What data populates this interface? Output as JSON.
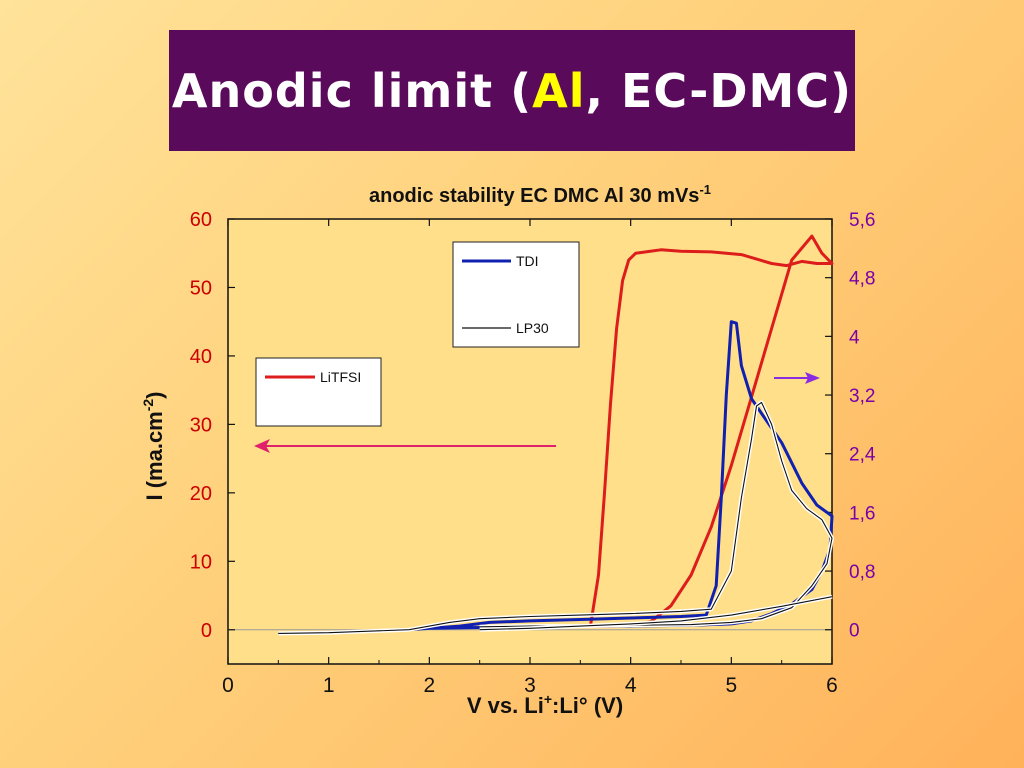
{
  "slide": {
    "title_prefix": "Anodic limit (",
    "title_highlight": "Al",
    "title_suffix": ", EC-DMC)"
  },
  "chart_data": {
    "type": "line",
    "title": "anodic stability EC DMC Al 30 mVs",
    "title_superscript": "-1",
    "xlabel_main": "V vs. Li",
    "xlabel_sup": "+",
    "xlabel_tail": ":Li° (V)",
    "ylabel_main": "I (ma.cm",
    "ylabel_sup": "-2",
    "ylabel_tail": ")",
    "xlim": [
      0,
      6
    ],
    "ylim_left": [
      -5,
      60
    ],
    "ylim_right": [
      -0.467,
      5.6
    ],
    "x_ticks": [
      "0",
      "1",
      "2",
      "3",
      "4",
      "5",
      "6"
    ],
    "y_ticks_left": [
      "0",
      "10",
      "20",
      "30",
      "40",
      "50",
      "60"
    ],
    "y_ticks_right": [
      "0",
      "0,8",
      "1,6",
      "2,4",
      "3,2",
      "4",
      "4,8",
      "5,6"
    ],
    "colors": {
      "left_axis": "#cc0000",
      "right_axis": "#7a00a8",
      "litfsi": "#dd1c1c",
      "tdi": "#1020b0",
      "lp30": "#111111",
      "arrow_left": "#e0206a",
      "arrow_right": "#8a2be2"
    },
    "legend_litfsi": "LiTFSI",
    "legend_tdi": "TDI",
    "legend_lp30": "LP30",
    "series": [
      {
        "name": "LiTFSI",
        "axis": "left",
        "x": [
          3.6,
          3.68,
          3.74,
          3.8,
          3.86,
          3.92,
          3.98,
          4.05,
          4.15,
          4.3,
          4.5,
          4.8,
          5.1,
          5.4,
          5.55,
          5.7,
          5.85,
          6.0,
          5.9,
          5.8,
          5.6,
          5.4,
          5.2,
          5.0,
          4.8,
          4.6,
          4.4,
          4.2,
          4.0,
          3.8,
          3.6
        ],
        "y": [
          0.5,
          8,
          20,
          33,
          44,
          51,
          54,
          55,
          55.2,
          55.5,
          55.3,
          55.2,
          54.8,
          53.5,
          53.2,
          53.8,
          53.5,
          53.5,
          55,
          57.5,
          54,
          44,
          34,
          24,
          15,
          8,
          3.5,
          1.2,
          0.6,
          0.5,
          0.5
        ]
      },
      {
        "name": "TDI",
        "axis": "right",
        "x": [
          0.5,
          1.0,
          1.8,
          2.3,
          2.6,
          3.0,
          3.5,
          4.0,
          4.5,
          4.75,
          4.85,
          4.9,
          4.95,
          5.0,
          5.05,
          5.1,
          5.2,
          5.3,
          5.5,
          5.7,
          5.85,
          6.0,
          5.98,
          5.9,
          5.8,
          5.6,
          5.4,
          5.2,
          5.0,
          4.6,
          4.0,
          3.5,
          3.0,
          2.5,
          2.0,
          1.8
        ],
        "y": [
          -0.05,
          -0.04,
          0.0,
          0.05,
          0.1,
          0.12,
          0.14,
          0.16,
          0.18,
          0.2,
          0.6,
          1.8,
          3.2,
          4.2,
          4.18,
          3.6,
          3.15,
          2.95,
          2.55,
          2.0,
          1.7,
          1.55,
          1.1,
          0.8,
          0.55,
          0.35,
          0.22,
          0.12,
          0.08,
          0.06,
          0.05,
          0.05,
          0.04,
          0.03,
          0.02,
          0.0
        ]
      },
      {
        "name": "LP30",
        "axis": "right",
        "x": [
          0.5,
          1.0,
          1.8,
          2.2,
          2.5,
          3.0,
          3.5,
          4.0,
          4.5,
          4.8,
          5.0,
          5.1,
          5.2,
          5.25,
          5.3,
          5.4,
          5.5,
          5.6,
          5.75,
          5.9,
          6.0,
          5.95,
          5.8,
          5.6,
          5.3,
          5.0,
          4.6,
          4.0,
          3.5,
          3.0,
          2.5
        ],
        "y": [
          -0.05,
          -0.04,
          0.0,
          0.1,
          0.15,
          0.18,
          0.2,
          0.22,
          0.25,
          0.28,
          0.8,
          1.8,
          2.6,
          3.05,
          3.1,
          2.8,
          2.3,
          1.9,
          1.65,
          1.5,
          1.25,
          0.9,
          0.6,
          0.3,
          0.15,
          0.1,
          0.07,
          0.06,
          0.05,
          0.05,
          0.04
        ]
      },
      {
        "name": "LP30",
        "axis": "right",
        "x": [
          2.5,
          3.0,
          3.5,
          4.0,
          4.5,
          5.0,
          5.5,
          6.0
        ],
        "y": [
          0.0,
          0.02,
          0.05,
          0.08,
          0.12,
          0.2,
          0.32,
          0.45
        ]
      }
    ]
  }
}
